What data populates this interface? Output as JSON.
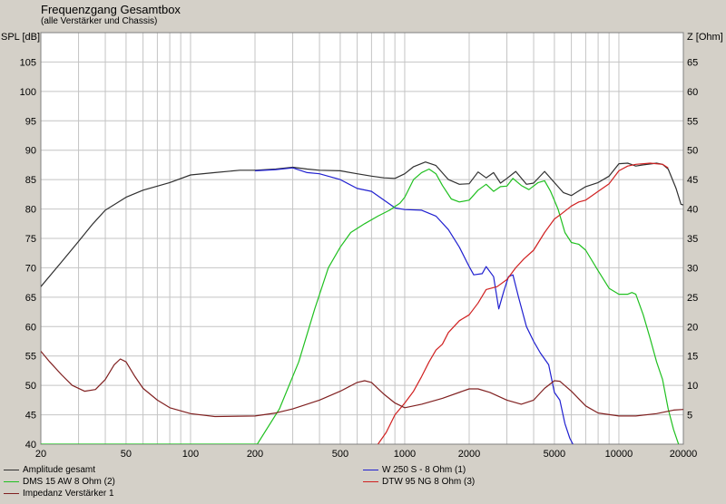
{
  "chart_data": {
    "type": "line",
    "title": "Frequenzgang Gesamtbox",
    "subtitle": "(alle Verstärker und Chassis)",
    "ylabel_left": "SPL [dB]",
    "ylabel_right": "Z [Ohm]",
    "x_scale": "log",
    "xlim": [
      20,
      20000
    ],
    "ylim_left": [
      40,
      110
    ],
    "ylim_right": [
      0,
      70
    ],
    "grid": true,
    "x_ticks": [
      "20",
      "50",
      "100",
      "200",
      "500",
      "1000",
      "2000",
      "5000",
      "10000",
      "20000"
    ],
    "y_ticks_left": [
      "40",
      "45",
      "50",
      "55",
      "60",
      "65",
      "70",
      "75",
      "80",
      "85",
      "90",
      "95",
      "100",
      "105"
    ],
    "y_ticks_right": [
      "5",
      "10",
      "15",
      "20",
      "25",
      "30",
      "35",
      "40",
      "45",
      "50",
      "55",
      "60",
      "65"
    ],
    "legend_position": "bottom",
    "series": [
      {
        "name": "Amplitude gesamt",
        "axis": "left",
        "color": "#303030",
        "points": [
          [
            20,
            66.8
          ],
          [
            25,
            71
          ],
          [
            30,
            74.5
          ],
          [
            35,
            77.5
          ],
          [
            40,
            79.8
          ],
          [
            50,
            82
          ],
          [
            60,
            83.2
          ],
          [
            80,
            84.5
          ],
          [
            100,
            85.8
          ],
          [
            130,
            86.2
          ],
          [
            170,
            86.6
          ],
          [
            200,
            86.6
          ],
          [
            250,
            86.8
          ],
          [
            300,
            87.1
          ],
          [
            350,
            86.8
          ],
          [
            400,
            86.6
          ],
          [
            500,
            86.5
          ],
          [
            600,
            86
          ],
          [
            700,
            85.6
          ],
          [
            800,
            85.3
          ],
          [
            900,
            85.2
          ],
          [
            1000,
            86
          ],
          [
            1100,
            87.2
          ],
          [
            1250,
            88
          ],
          [
            1400,
            87.4
          ],
          [
            1600,
            85
          ],
          [
            1800,
            84.2
          ],
          [
            2000,
            84.3
          ],
          [
            2200,
            86.3
          ],
          [
            2400,
            85.3
          ],
          [
            2600,
            86.2
          ],
          [
            2800,
            84.4
          ],
          [
            3000,
            85.2
          ],
          [
            3300,
            86.4
          ],
          [
            3700,
            84.2
          ],
          [
            4000,
            84.4
          ],
          [
            4500,
            86.4
          ],
          [
            5000,
            84.5
          ],
          [
            5500,
            82.8
          ],
          [
            6000,
            82.3
          ],
          [
            7000,
            83.8
          ],
          [
            8000,
            84.5
          ],
          [
            9000,
            85.6
          ],
          [
            10000,
            87.7
          ],
          [
            11000,
            87.8
          ],
          [
            12000,
            87.3
          ],
          [
            13000,
            87.5
          ],
          [
            15000,
            87.8
          ],
          [
            16000,
            87.6
          ],
          [
            17000,
            86.8
          ],
          [
            18500,
            83.5
          ],
          [
            19500,
            80.8
          ],
          [
            20000,
            80.7
          ]
        ]
      },
      {
        "name": "W 250 S - 8 Ohm  (1)",
        "axis": "left",
        "color": "#2020d0",
        "points": [
          [
            200,
            86.5
          ],
          [
            250,
            86.7
          ],
          [
            300,
            87
          ],
          [
            350,
            86.2
          ],
          [
            400,
            86
          ],
          [
            500,
            85
          ],
          [
            600,
            83.5
          ],
          [
            700,
            83
          ],
          [
            800,
            81.5
          ],
          [
            900,
            80.2
          ],
          [
            1000,
            79.9
          ],
          [
            1200,
            79.8
          ],
          [
            1400,
            78.8
          ],
          [
            1600,
            76.5
          ],
          [
            1800,
            73.5
          ],
          [
            2000,
            70.2
          ],
          [
            2100,
            68.8
          ],
          [
            2300,
            69
          ],
          [
            2400,
            70.2
          ],
          [
            2600,
            68.5
          ],
          [
            2750,
            63
          ],
          [
            2900,
            66
          ],
          [
            3050,
            68.5
          ],
          [
            3200,
            68.8
          ],
          [
            3400,
            65
          ],
          [
            3700,
            60
          ],
          [
            4000,
            57.5
          ],
          [
            4300,
            55.5
          ],
          [
            4700,
            53.5
          ],
          [
            5000,
            48.8
          ],
          [
            5300,
            47.5
          ],
          [
            5600,
            43.5
          ],
          [
            5900,
            41
          ],
          [
            6100,
            40
          ]
        ]
      },
      {
        "name": "DMS 15 AW 8 Ohm (2)",
        "axis": "left",
        "color": "#20c020",
        "points": [
          [
            20,
            40
          ],
          [
            205,
            40
          ],
          [
            260,
            46
          ],
          [
            320,
            54
          ],
          [
            380,
            63
          ],
          [
            440,
            70
          ],
          [
            500,
            73.5
          ],
          [
            560,
            76
          ],
          [
            650,
            77.5
          ],
          [
            750,
            78.8
          ],
          [
            850,
            79.8
          ],
          [
            950,
            81
          ],
          [
            1000,
            82
          ],
          [
            1100,
            85
          ],
          [
            1200,
            86.2
          ],
          [
            1300,
            86.8
          ],
          [
            1400,
            86
          ],
          [
            1500,
            84
          ],
          [
            1650,
            81.7
          ],
          [
            1800,
            81.2
          ],
          [
            2000,
            81.5
          ],
          [
            2200,
            83.2
          ],
          [
            2400,
            84.2
          ],
          [
            2600,
            83
          ],
          [
            2800,
            83.8
          ],
          [
            3000,
            83.9
          ],
          [
            3200,
            85.2
          ],
          [
            3500,
            84
          ],
          [
            3800,
            83.3
          ],
          [
            4200,
            84.5
          ],
          [
            4500,
            84.8
          ],
          [
            4800,
            83
          ],
          [
            5200,
            80
          ],
          [
            5600,
            76
          ],
          [
            6000,
            74.3
          ],
          [
            6500,
            74
          ],
          [
            7000,
            73
          ],
          [
            8000,
            69.5
          ],
          [
            9000,
            66.5
          ],
          [
            10000,
            65.5
          ],
          [
            11000,
            65.5
          ],
          [
            11500,
            65.8
          ],
          [
            12000,
            65.5
          ],
          [
            13000,
            62
          ],
          [
            14000,
            58
          ],
          [
            15000,
            54
          ],
          [
            16000,
            51
          ],
          [
            17000,
            46
          ],
          [
            18000,
            42.5
          ],
          [
            19000,
            40
          ]
        ]
      },
      {
        "name": "DTW 95 NG 8 Ohm (3)",
        "axis": "left",
        "color": "#d02020",
        "points": [
          [
            750,
            40
          ],
          [
            820,
            42
          ],
          [
            900,
            45
          ],
          [
            1000,
            47
          ],
          [
            1100,
            49
          ],
          [
            1200,
            51.5
          ],
          [
            1300,
            54
          ],
          [
            1400,
            56
          ],
          [
            1500,
            57
          ],
          [
            1600,
            59
          ],
          [
            1800,
            61
          ],
          [
            2000,
            62
          ],
          [
            2200,
            64
          ],
          [
            2400,
            66.3
          ],
          [
            2700,
            66.8
          ],
          [
            3000,
            68
          ],
          [
            3300,
            70
          ],
          [
            3600,
            71.5
          ],
          [
            4000,
            73
          ],
          [
            4500,
            76
          ],
          [
            5000,
            78.3
          ],
          [
            5400,
            79.2
          ],
          [
            6000,
            80.5
          ],
          [
            6500,
            81.2
          ],
          [
            7000,
            81.5
          ],
          [
            8000,
            83
          ],
          [
            9000,
            84.3
          ],
          [
            10000,
            86.5
          ],
          [
            11000,
            87.3
          ],
          [
            12000,
            87.6
          ],
          [
            14000,
            87.8
          ],
          [
            16000,
            87.6
          ],
          [
            17000,
            87
          ]
        ]
      },
      {
        "name": "Impedanz Verstärker 1",
        "axis": "right",
        "color": "#802020",
        "points": [
          [
            20,
            15.8
          ],
          [
            22,
            14
          ],
          [
            25,
            11.8
          ],
          [
            28,
            10
          ],
          [
            32,
            9
          ],
          [
            36,
            9.3
          ],
          [
            40,
            11
          ],
          [
            44,
            13.5
          ],
          [
            47,
            14.5
          ],
          [
            50,
            14
          ],
          [
            55,
            11.5
          ],
          [
            60,
            9.5
          ],
          [
            70,
            7.5
          ],
          [
            80,
            6.2
          ],
          [
            100,
            5.2
          ],
          [
            130,
            4.7
          ],
          [
            200,
            4.8
          ],
          [
            250,
            5.3
          ],
          [
            300,
            6
          ],
          [
            400,
            7.5
          ],
          [
            500,
            9
          ],
          [
            600,
            10.5
          ],
          [
            650,
            10.8
          ],
          [
            700,
            10.5
          ],
          [
            800,
            8.5
          ],
          [
            900,
            7
          ],
          [
            1000,
            6.2
          ],
          [
            1200,
            6.8
          ],
          [
            1500,
            7.8
          ],
          [
            2000,
            9.4
          ],
          [
            2200,
            9.4
          ],
          [
            2500,
            8.8
          ],
          [
            3000,
            7.5
          ],
          [
            3500,
            6.8
          ],
          [
            4000,
            7.5
          ],
          [
            4500,
            9.5
          ],
          [
            5000,
            10.8
          ],
          [
            5300,
            10.7
          ],
          [
            6000,
            9
          ],
          [
            7000,
            6.5
          ],
          [
            8000,
            5.3
          ],
          [
            10000,
            4.8
          ],
          [
            12000,
            4.8
          ],
          [
            15000,
            5.2
          ],
          [
            18000,
            5.8
          ],
          [
            20000,
            5.9
          ]
        ]
      }
    ]
  }
}
